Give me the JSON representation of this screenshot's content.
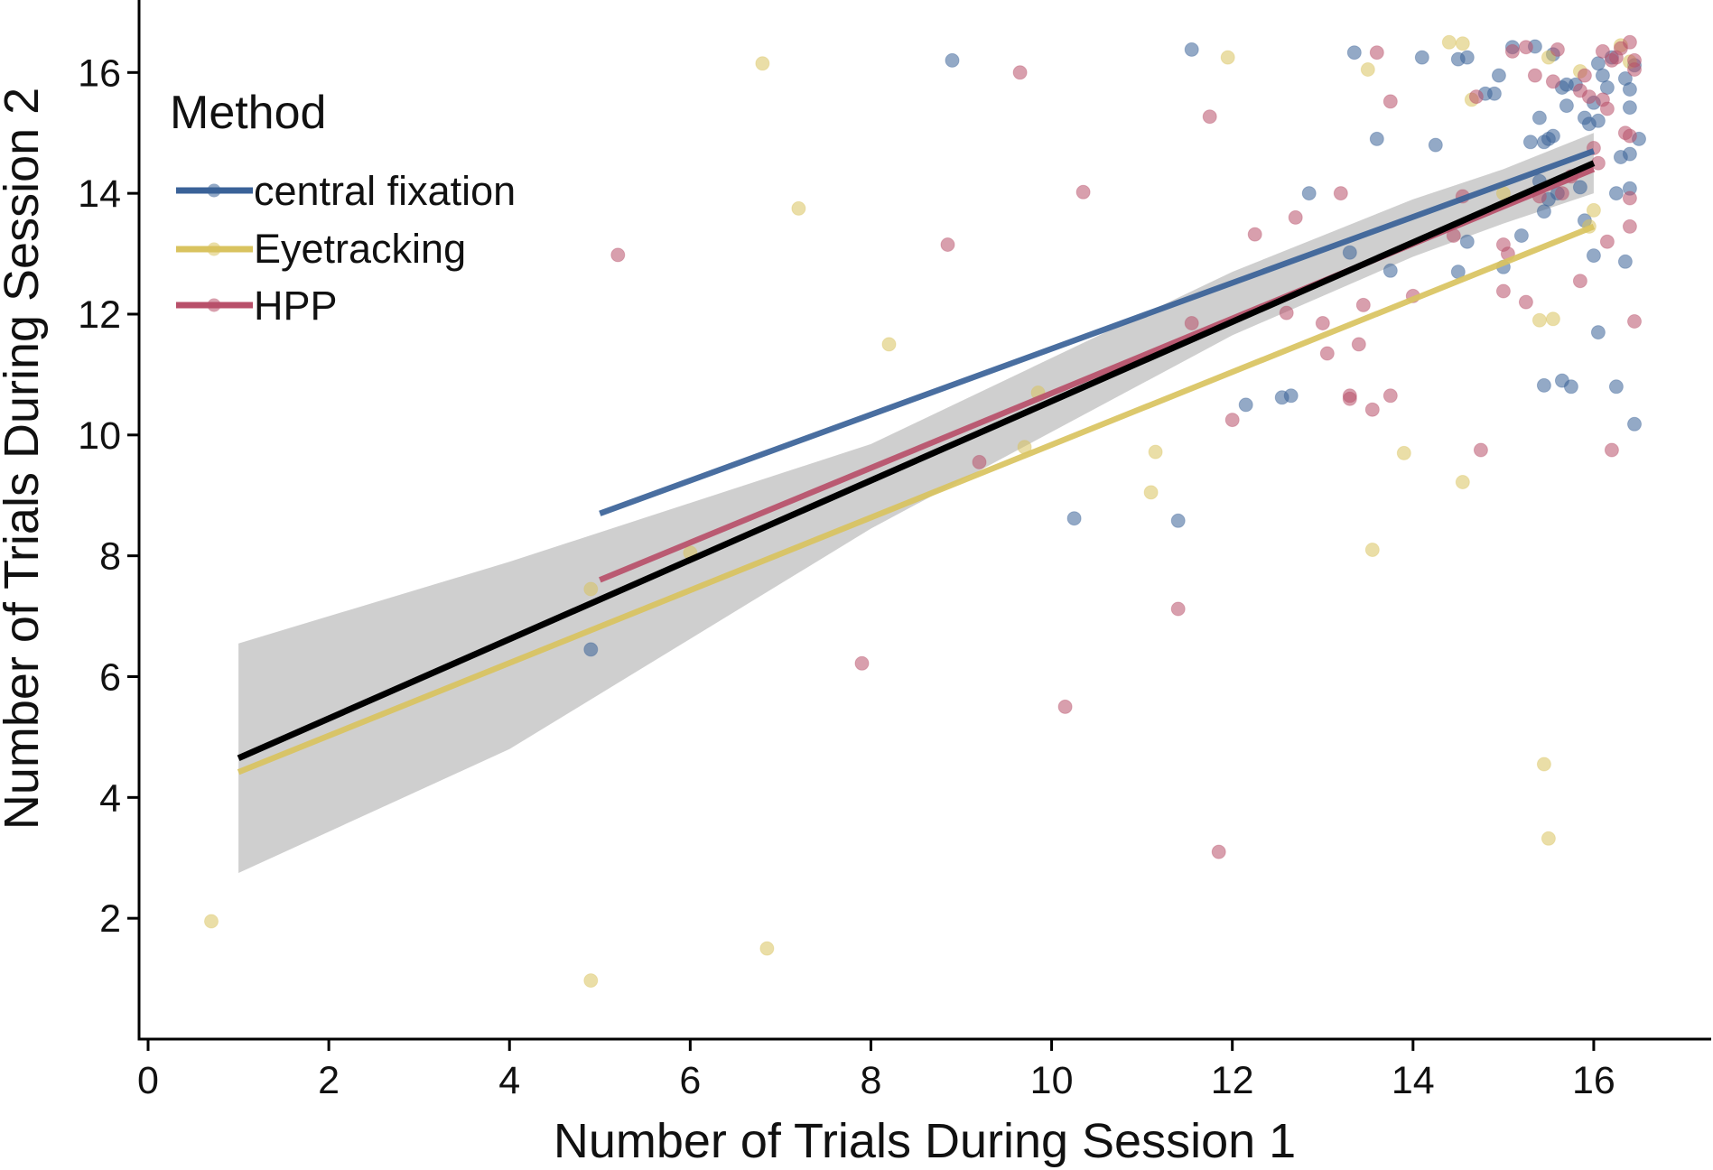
{
  "chart_data": {
    "type": "scatter",
    "title": "",
    "xlabel": "Number of Trials During Session 1",
    "ylabel": "Number of Trials During Session 2",
    "xlim": [
      -0.1,
      17.3
    ],
    "ylim": [
      0.0,
      17.2
    ],
    "xticks": [
      0,
      2,
      4,
      6,
      8,
      10,
      12,
      14,
      16
    ],
    "yticks": [
      2,
      4,
      6,
      8,
      10,
      12,
      14,
      16
    ],
    "grid": false,
    "legend": {
      "title": "Method",
      "placement": "top-left",
      "entries": [
        "central fixation",
        "Eyetracking",
        "HPP"
      ]
    },
    "colors": {
      "central fixation": "#3a6298",
      "Eyetracking": "#d9c35f",
      "HPP": "#b8506a",
      "overall": "#000000",
      "ci_band": "#bdbdbd"
    },
    "series": [
      {
        "name": "central fixation",
        "points": [
          [
            4.9,
            6.45
          ],
          [
            8.9,
            16.2
          ],
          [
            10.25,
            8.62
          ],
          [
            11.4,
            8.58
          ],
          [
            11.55,
            16.38
          ],
          [
            12.15,
            10.5
          ],
          [
            12.55,
            10.62
          ],
          [
            12.65,
            10.65
          ],
          [
            12.85,
            14.0
          ],
          [
            13.3,
            13.02
          ],
          [
            13.35,
            16.33
          ],
          [
            13.6,
            14.9
          ],
          [
            13.75,
            12.72
          ],
          [
            14.1,
            16.25
          ],
          [
            14.25,
            14.8
          ],
          [
            14.5,
            16.22
          ],
          [
            14.6,
            16.25
          ],
          [
            14.6,
            13.2
          ],
          [
            14.5,
            12.7
          ],
          [
            14.8,
            15.65
          ],
          [
            14.9,
            15.65
          ],
          [
            14.95,
            15.95
          ],
          [
            15.0,
            12.78
          ],
          [
            15.1,
            16.42
          ],
          [
            15.2,
            13.3
          ],
          [
            15.3,
            14.85
          ],
          [
            15.35,
            16.43
          ],
          [
            15.4,
            15.25
          ],
          [
            15.4,
            14.2
          ],
          [
            15.45,
            14.85
          ],
          [
            15.45,
            13.7
          ],
          [
            15.45,
            10.82
          ],
          [
            15.5,
            14.9
          ],
          [
            15.5,
            13.9
          ],
          [
            15.55,
            16.3
          ],
          [
            15.55,
            14.95
          ],
          [
            15.6,
            14.0
          ],
          [
            15.65,
            10.9
          ],
          [
            15.65,
            15.75
          ],
          [
            15.7,
            15.45
          ],
          [
            15.7,
            15.8
          ],
          [
            15.75,
            10.8
          ],
          [
            15.8,
            15.8
          ],
          [
            15.85,
            14.1
          ],
          [
            15.9,
            15.25
          ],
          [
            15.9,
            13.55
          ],
          [
            15.95,
            15.15
          ],
          [
            16.0,
            15.5
          ],
          [
            16.0,
            12.97
          ],
          [
            16.05,
            15.2
          ],
          [
            16.05,
            16.15
          ],
          [
            16.05,
            11.7
          ],
          [
            16.1,
            15.95
          ],
          [
            16.15,
            15.75
          ],
          [
            16.2,
            16.25
          ],
          [
            16.25,
            14.0
          ],
          [
            16.25,
            10.8
          ],
          [
            16.3,
            14.6
          ],
          [
            16.35,
            15.9
          ],
          [
            16.35,
            12.87
          ],
          [
            16.4,
            15.42
          ],
          [
            16.4,
            14.65
          ],
          [
            16.4,
            15.72
          ],
          [
            16.4,
            14.08
          ],
          [
            16.45,
            16.12
          ],
          [
            16.45,
            10.18
          ],
          [
            16.5,
            14.9
          ]
        ]
      },
      {
        "name": "Eyetracking",
        "points": [
          [
            0.7,
            1.95
          ],
          [
            4.9,
            0.97
          ],
          [
            4.9,
            7.45
          ],
          [
            6.0,
            8.05
          ],
          [
            6.8,
            16.15
          ],
          [
            6.85,
            1.5
          ],
          [
            7.2,
            13.75
          ],
          [
            8.2,
            11.5
          ],
          [
            9.7,
            9.8
          ],
          [
            9.85,
            10.7
          ],
          [
            11.1,
            9.05
          ],
          [
            11.15,
            9.72
          ],
          [
            11.95,
            16.25
          ],
          [
            13.5,
            16.05
          ],
          [
            13.55,
            8.1
          ],
          [
            13.9,
            9.7
          ],
          [
            14.4,
            16.5
          ],
          [
            14.55,
            16.48
          ],
          [
            14.55,
            9.22
          ],
          [
            14.65,
            15.55
          ],
          [
            15.0,
            14.0
          ],
          [
            15.4,
            11.9
          ],
          [
            15.45,
            4.55
          ],
          [
            15.5,
            3.32
          ],
          [
            15.5,
            16.25
          ],
          [
            15.55,
            11.92
          ],
          [
            15.85,
            16.02
          ],
          [
            15.95,
            13.45
          ],
          [
            16.0,
            13.72
          ],
          [
            16.3,
            16.45
          ],
          [
            16.4,
            16.18
          ]
        ]
      },
      {
        "name": "HPP",
        "points": [
          [
            5.2,
            12.98
          ],
          [
            7.9,
            6.22
          ],
          [
            8.85,
            13.15
          ],
          [
            9.2,
            9.55
          ],
          [
            9.65,
            16.0
          ],
          [
            10.15,
            5.5
          ],
          [
            10.35,
            14.02
          ],
          [
            11.4,
            7.12
          ],
          [
            11.55,
            11.85
          ],
          [
            11.75,
            15.27
          ],
          [
            11.85,
            3.1
          ],
          [
            12.0,
            10.25
          ],
          [
            12.25,
            13.32
          ],
          [
            12.6,
            12.02
          ],
          [
            12.7,
            13.6
          ],
          [
            13.0,
            11.85
          ],
          [
            13.05,
            11.35
          ],
          [
            13.2,
            14.0
          ],
          [
            13.3,
            10.6
          ],
          [
            13.3,
            10.65
          ],
          [
            13.4,
            11.5
          ],
          [
            13.45,
            12.15
          ],
          [
            13.55,
            10.42
          ],
          [
            13.6,
            16.33
          ],
          [
            13.75,
            15.52
          ],
          [
            13.75,
            10.65
          ],
          [
            14.0,
            12.3
          ],
          [
            14.45,
            13.3
          ],
          [
            14.55,
            13.95
          ],
          [
            14.7,
            15.6
          ],
          [
            14.75,
            9.75
          ],
          [
            15.0,
            13.15
          ],
          [
            15.0,
            12.38
          ],
          [
            15.05,
            13.0
          ],
          [
            15.1,
            16.35
          ],
          [
            15.25,
            12.2
          ],
          [
            15.25,
            16.42
          ],
          [
            15.35,
            15.95
          ],
          [
            15.4,
            13.95
          ],
          [
            15.55,
            15.85
          ],
          [
            15.6,
            16.38
          ],
          [
            15.65,
            14.0
          ],
          [
            15.75,
            14.28
          ],
          [
            15.85,
            15.7
          ],
          [
            15.85,
            12.55
          ],
          [
            15.9,
            15.95
          ],
          [
            15.95,
            15.6
          ],
          [
            16.0,
            14.75
          ],
          [
            16.05,
            14.5
          ],
          [
            16.1,
            16.35
          ],
          [
            16.1,
            15.55
          ],
          [
            16.15,
            15.4
          ],
          [
            16.15,
            13.2
          ],
          [
            16.2,
            16.2
          ],
          [
            16.2,
            9.75
          ],
          [
            16.25,
            16.25
          ],
          [
            16.3,
            16.4
          ],
          [
            16.35,
            15.0
          ],
          [
            16.4,
            14.95
          ],
          [
            16.4,
            16.5
          ],
          [
            16.4,
            13.45
          ],
          [
            16.4,
            13.92
          ],
          [
            16.45,
            11.88
          ],
          [
            16.45,
            16.2
          ],
          [
            16.45,
            16.05
          ]
        ]
      }
    ],
    "fits": [
      {
        "name": "central fixation",
        "x": [
          5.0,
          16.0
        ],
        "y": [
          8.7,
          14.7
        ]
      },
      {
        "name": "Eyetracking",
        "x": [
          1.0,
          16.0
        ],
        "y": [
          4.42,
          13.45
        ]
      },
      {
        "name": "HPP",
        "x": [
          5.0,
          16.0
        ],
        "y": [
          7.6,
          14.4
        ]
      }
    ],
    "overall_fit": {
      "x": [
        1.0,
        16.0
      ],
      "y": [
        4.65,
        14.5
      ],
      "ci_band": {
        "x": [
          1.0,
          4.0,
          8.0,
          12.0,
          14.0,
          15.0,
          16.0
        ],
        "upper": [
          6.55,
          7.9,
          9.85,
          12.7,
          13.9,
          14.4,
          15.0
        ],
        "lower": [
          2.75,
          4.8,
          8.45,
          11.65,
          12.95,
          13.5,
          14.0
        ]
      }
    }
  }
}
